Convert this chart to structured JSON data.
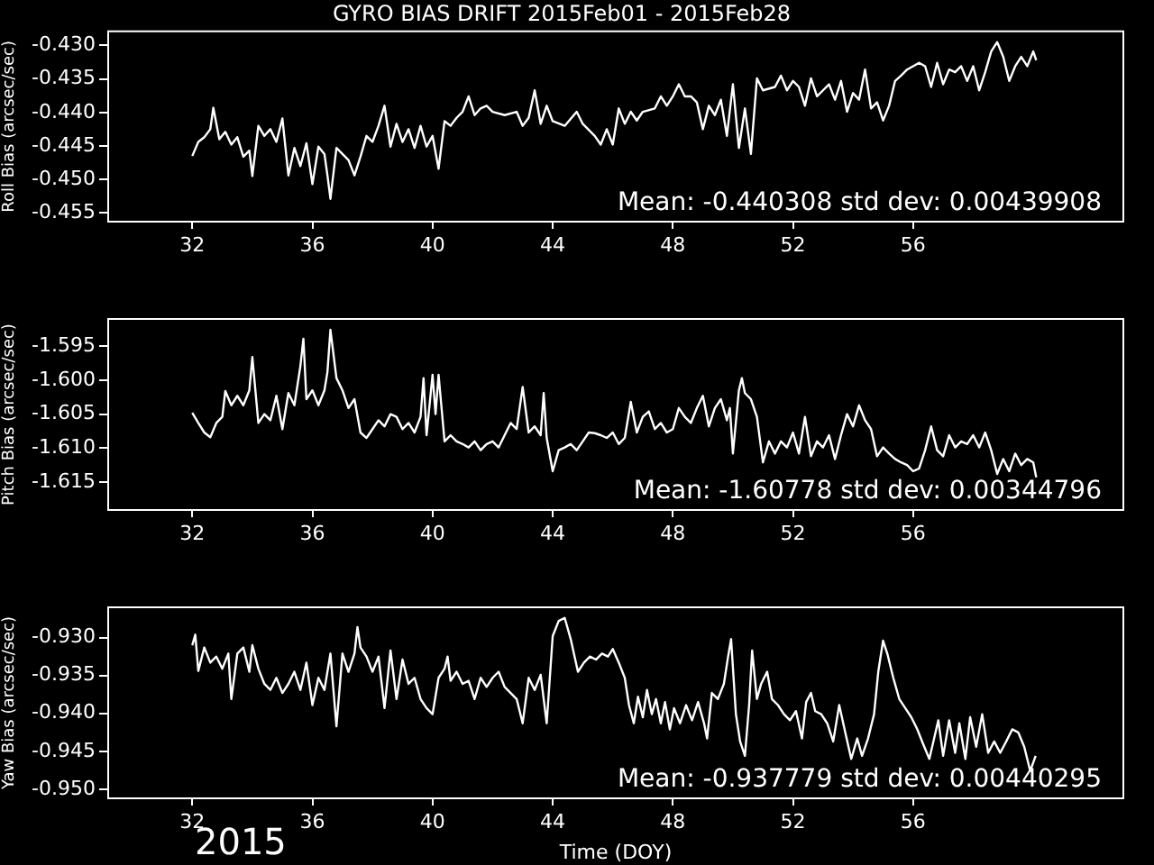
{
  "chart_data": [
    {
      "type": "line",
      "title": "GYRO BIAS DRIFT 2015Feb01 - 2015Feb28",
      "ylabel": "Roll Bias (arcsec/sec)",
      "color": "#ffffff",
      "x": [
        32.0,
        32.2,
        32.4,
        32.6,
        32.7,
        32.9,
        33.1,
        33.3,
        33.5,
        33.7,
        33.9,
        34.0,
        34.2,
        34.4,
        34.6,
        34.8,
        35.0,
        35.2,
        35.4,
        35.6,
        35.8,
        36.0,
        36.2,
        36.4,
        36.5,
        36.6,
        36.8,
        37.0,
        37.2,
        37.4,
        37.6,
        37.8,
        38.0,
        38.2,
        38.4,
        38.6,
        38.8,
        39.0,
        39.2,
        39.4,
        39.6,
        39.8,
        40.0,
        40.2,
        40.4,
        40.6,
        40.8,
        41.0,
        41.2,
        41.4,
        41.6,
        41.8,
        42.0,
        42.4,
        42.8,
        43.0,
        43.2,
        43.4,
        43.6,
        43.8,
        44.0,
        44.4,
        44.8,
        45.0,
        45.4,
        45.6,
        45.8,
        46.0,
        46.2,
        46.4,
        46.6,
        46.8,
        47.0,
        47.4,
        47.6,
        47.8,
        48.0,
        48.2,
        48.4,
        48.6,
        48.8,
        49.0,
        49.2,
        49.4,
        49.6,
        49.8,
        50.0,
        50.2,
        50.4,
        50.6,
        50.8,
        51.0,
        51.4,
        51.6,
        51.8,
        52.0,
        52.2,
        52.4,
        52.6,
        52.8,
        53.0,
        53.2,
        53.4,
        53.6,
        53.8,
        54.0,
        54.2,
        54.4,
        54.6,
        54.8,
        55.0,
        55.2,
        55.4,
        55.6,
        55.8,
        56.0,
        56.2,
        56.4,
        56.6,
        56.8,
        57.0,
        57.2,
        57.4,
        57.6,
        57.8,
        58.0,
        58.2,
        58.4,
        58.6,
        58.8,
        59.0,
        59.2,
        59.4,
        59.6,
        59.8,
        60.0,
        60.1
      ],
      "values": [
        -0.4465,
        -0.4444,
        -0.4437,
        -0.4425,
        -0.4393,
        -0.444,
        -0.4429,
        -0.4448,
        -0.4437,
        -0.4466,
        -0.4457,
        -0.4495,
        -0.442,
        -0.4435,
        -0.4425,
        -0.4444,
        -0.4409,
        -0.4494,
        -0.4453,
        -0.448,
        -0.4446,
        -0.4507,
        -0.4451,
        -0.4462,
        -0.4494,
        -0.4529,
        -0.4453,
        -0.4462,
        -0.4471,
        -0.4494,
        -0.4466,
        -0.4435,
        -0.4444,
        -0.442,
        -0.439,
        -0.4451,
        -0.4417,
        -0.4444,
        -0.4425,
        -0.4453,
        -0.442,
        -0.4451,
        -0.4435,
        -0.4484,
        -0.4413,
        -0.442,
        -0.4408,
        -0.4399,
        -0.4376,
        -0.4404,
        -0.4394,
        -0.439,
        -0.4399,
        -0.4404,
        -0.4399,
        -0.442,
        -0.4408,
        -0.4367,
        -0.4417,
        -0.439,
        -0.4413,
        -0.442,
        -0.4399,
        -0.4417,
        -0.4435,
        -0.4448,
        -0.4425,
        -0.4448,
        -0.4394,
        -0.4417,
        -0.4399,
        -0.4412,
        -0.4399,
        -0.4394,
        -0.4376,
        -0.439,
        -0.4376,
        -0.4358,
        -0.4376,
        -0.4376,
        -0.4385,
        -0.4425,
        -0.439,
        -0.4404,
        -0.4381,
        -0.4435,
        -0.4358,
        -0.4453,
        -0.4394,
        -0.4462,
        -0.4349,
        -0.4367,
        -0.4362,
        -0.4345,
        -0.4367,
        -0.4353,
        -0.4362,
        -0.439,
        -0.4349,
        -0.4376,
        -0.4367,
        -0.4358,
        -0.4381,
        -0.4353,
        -0.4399,
        -0.4371,
        -0.4381,
        -0.4336,
        -0.4394,
        -0.4385,
        -0.4412,
        -0.439,
        -0.4353,
        -0.4345,
        -0.4336,
        -0.4331,
        -0.4326,
        -0.4331,
        -0.4362,
        -0.4326,
        -0.4358,
        -0.4336,
        -0.434,
        -0.4331,
        -0.4353,
        -0.4331,
        -0.4367,
        -0.434,
        -0.4309,
        -0.4295,
        -0.4317,
        -0.4353,
        -0.4331,
        -0.4317,
        -0.4331,
        -0.4309,
        -0.4322
      ],
      "xlim": [
        29.2,
        63
      ],
      "xticks": [
        32,
        36,
        40,
        44,
        48,
        52,
        56
      ],
      "ylim": [
        -0.4563,
        -0.4279
      ],
      "yticks": [
        {
          "value": -0.43,
          "label": "-0.430"
        },
        {
          "value": -0.435,
          "label": "-0.435"
        },
        {
          "value": -0.44,
          "label": "-0.440"
        },
        {
          "value": -0.445,
          "label": "-0.445"
        },
        {
          "value": -0.45,
          "label": "-0.450"
        },
        {
          "value": -0.455,
          "label": "-0.455"
        }
      ],
      "annotations": [
        "Mean: -0.440308 std dev: 0.00439908"
      ]
    },
    {
      "type": "line",
      "ylabel": "Pitch Bias (arcsec/sec)",
      "color": "#ffffff",
      "x": [
        32.0,
        32.2,
        32.4,
        32.6,
        32.8,
        33.0,
        33.1,
        33.3,
        33.5,
        33.7,
        33.9,
        34.0,
        34.2,
        34.4,
        34.6,
        34.8,
        35.0,
        35.2,
        35.4,
        35.6,
        35.7,
        35.8,
        36.0,
        36.2,
        36.4,
        36.5,
        36.6,
        36.8,
        37.0,
        37.2,
        37.4,
        37.6,
        37.8,
        38.0,
        38.2,
        38.4,
        38.6,
        38.8,
        39.0,
        39.2,
        39.4,
        39.6,
        39.7,
        39.8,
        40.0,
        40.1,
        40.2,
        40.4,
        40.6,
        40.8,
        41.0,
        41.2,
        41.4,
        41.6,
        41.8,
        42.0,
        42.2,
        42.4,
        42.6,
        42.8,
        43.0,
        43.2,
        43.4,
        43.6,
        43.7,
        43.8,
        44.0,
        44.2,
        44.4,
        44.6,
        44.8,
        45.0,
        45.2,
        45.4,
        45.6,
        45.8,
        46.0,
        46.2,
        46.4,
        46.6,
        46.8,
        47.0,
        47.2,
        47.4,
        47.6,
        47.8,
        48.0,
        48.2,
        48.4,
        48.6,
        48.8,
        49.0,
        49.2,
        49.4,
        49.6,
        49.8,
        49.9,
        50.0,
        50.2,
        50.3,
        50.4,
        50.6,
        50.8,
        51.0,
        51.2,
        51.4,
        51.6,
        51.8,
        52.0,
        52.2,
        52.4,
        52.6,
        52.8,
        53.0,
        53.2,
        53.4,
        53.6,
        53.8,
        54.0,
        54.2,
        54.4,
        54.6,
        54.8,
        55.0,
        55.2,
        55.4,
        55.6,
        55.8,
        56.0,
        56.2,
        56.4,
        56.6,
        56.8,
        57.0,
        57.2,
        57.4,
        57.6,
        57.8,
        58.0,
        58.2,
        58.4,
        58.6,
        58.8,
        59.0,
        59.2,
        59.4,
        59.6,
        59.8,
        60.0,
        60.1
      ],
      "values": [
        -1.6048,
        -1.6063,
        -1.6077,
        -1.6084,
        -1.6063,
        -1.6054,
        -1.6016,
        -1.6037,
        -1.6023,
        -1.6037,
        -1.6015,
        -1.5966,
        -1.6063,
        -1.605,
        -1.6059,
        -1.6023,
        -1.6072,
        -1.6019,
        -1.6037,
        -1.5979,
        -1.5939,
        -1.6028,
        -1.6015,
        -1.6037,
        -1.6015,
        -1.5988,
        -1.5926,
        -1.5997,
        -1.6015,
        -1.6041,
        -1.6028,
        -1.6077,
        -1.6085,
        -1.6072,
        -1.6059,
        -1.6068,
        -1.605,
        -1.6054,
        -1.6072,
        -1.6063,
        -1.6077,
        -1.6054,
        -1.5997,
        -1.6081,
        -1.5992,
        -1.605,
        -1.5992,
        -1.609,
        -1.6081,
        -1.609,
        -1.6094,
        -1.6099,
        -1.609,
        -1.6103,
        -1.6094,
        -1.609,
        -1.6099,
        -1.6081,
        -1.6063,
        -1.6072,
        -1.601,
        -1.6077,
        -1.6068,
        -1.6081,
        -1.6019,
        -1.6085,
        -1.6134,
        -1.6103,
        -1.6099,
        -1.6094,
        -1.6103,
        -1.609,
        -1.6077,
        -1.6078,
        -1.6081,
        -1.6085,
        -1.6077,
        -1.6094,
        -1.6085,
        -1.6032,
        -1.6077,
        -1.6054,
        -1.6046,
        -1.6072,
        -1.6063,
        -1.6077,
        -1.6072,
        -1.6041,
        -1.6054,
        -1.6063,
        -1.6041,
        -1.6023,
        -1.6068,
        -1.6041,
        -1.6028,
        -1.6059,
        -1.6041,
        -1.6108,
        -1.6015,
        -1.5997,
        -1.6019,
        -1.6028,
        -1.6054,
        -1.6121,
        -1.609,
        -1.6108,
        -1.609,
        -1.6099,
        -1.6077,
        -1.6108,
        -1.6054,
        -1.6112,
        -1.609,
        -1.6099,
        -1.6081,
        -1.6116,
        -1.6081,
        -1.605,
        -1.6068,
        -1.6037,
        -1.6059,
        -1.6072,
        -1.6112,
        -1.6099,
        -1.6108,
        -1.6116,
        -1.6121,
        -1.6125,
        -1.6134,
        -1.613,
        -1.6103,
        -1.6068,
        -1.6103,
        -1.6112,
        -1.6081,
        -1.6099,
        -1.609,
        -1.6094,
        -1.6081,
        -1.6099,
        -1.6077,
        -1.6103,
        -1.6138,
        -1.6116,
        -1.6134,
        -1.6108,
        -1.6125,
        -1.6116,
        -1.6121,
        -1.6143
      ],
      "xlim": [
        29.2,
        63
      ],
      "xticks": [
        32,
        36,
        40,
        44,
        48,
        52,
        56
      ],
      "ylim": [
        -1.6191,
        -1.591
      ],
      "yticks": [
        {
          "value": -1.595,
          "label": "-1.595"
        },
        {
          "value": -1.6,
          "label": "-1.600"
        },
        {
          "value": -1.605,
          "label": "-1.605"
        },
        {
          "value": -1.61,
          "label": "-1.610"
        },
        {
          "value": -1.615,
          "label": "-1.615"
        }
      ],
      "annotations": [
        "Mean: -1.60778 std dev: 0.00344796"
      ]
    },
    {
      "type": "line",
      "xlabel": "Time (DOY)",
      "ylabel": "Yaw Bias (arcsec/sec)",
      "color": "#ffffff",
      "x": [
        32.0,
        32.1,
        32.2,
        32.4,
        32.6,
        32.8,
        33.0,
        33.2,
        33.3,
        33.5,
        33.7,
        33.9,
        34.0,
        34.2,
        34.4,
        34.6,
        34.8,
        35.0,
        35.2,
        35.4,
        35.6,
        35.8,
        36.0,
        36.2,
        36.4,
        36.6,
        36.8,
        37.0,
        37.2,
        37.4,
        37.5,
        37.6,
        37.8,
        38.0,
        38.2,
        38.4,
        38.6,
        38.8,
        39.0,
        39.2,
        39.4,
        39.6,
        39.8,
        40.0,
        40.2,
        40.4,
        40.5,
        40.6,
        40.8,
        41.0,
        41.2,
        41.4,
        41.6,
        41.8,
        42.0,
        42.2,
        42.4,
        42.6,
        42.8,
        43.0,
        43.2,
        43.4,
        43.6,
        43.8,
        44.0,
        44.2,
        44.4,
        44.6,
        44.84,
        45.04,
        45.24,
        45.44,
        45.64,
        45.84,
        46.0,
        46.2,
        46.4,
        46.54,
        46.7,
        46.84,
        47.0,
        47.14,
        47.3,
        47.44,
        47.6,
        47.74,
        47.9,
        48.04,
        48.24,
        48.44,
        48.64,
        48.84,
        49.04,
        49.14,
        49.3,
        49.5,
        49.7,
        49.84,
        49.94,
        50.1,
        50.24,
        50.4,
        50.54,
        50.64,
        50.8,
        50.94,
        51.14,
        51.3,
        51.5,
        51.7,
        51.9,
        52.1,
        52.3,
        52.44,
        52.6,
        52.74,
        52.94,
        53.14,
        53.34,
        53.54,
        53.74,
        53.94,
        54.14,
        54.3,
        54.5,
        54.7,
        54.84,
        55.0,
        55.14,
        55.34,
        55.54,
        55.74,
        55.94,
        56.14,
        56.34,
        56.54,
        56.7,
        56.84,
        57.0,
        57.2,
        57.4,
        57.54,
        57.74,
        57.9,
        58.1,
        58.3,
        58.5,
        58.7,
        58.9,
        59.1,
        59.3,
        59.5,
        59.7,
        59.9,
        60.08
      ],
      "values": [
        -0.931,
        -0.9296,
        -0.9344,
        -0.9313,
        -0.9333,
        -0.9325,
        -0.9341,
        -0.9321,
        -0.9381,
        -0.9321,
        -0.9313,
        -0.9345,
        -0.931,
        -0.9341,
        -0.9361,
        -0.9369,
        -0.9353,
        -0.9373,
        -0.9361,
        -0.9345,
        -0.9369,
        -0.9333,
        -0.9389,
        -0.9353,
        -0.9369,
        -0.9321,
        -0.9417,
        -0.9321,
        -0.9345,
        -0.9321,
        -0.9286,
        -0.9313,
        -0.9325,
        -0.9345,
        -0.9325,
        -0.9393,
        -0.9317,
        -0.9381,
        -0.9329,
        -0.9361,
        -0.9353,
        -0.9381,
        -0.9393,
        -0.9401,
        -0.9353,
        -0.9341,
        -0.9325,
        -0.9357,
        -0.9345,
        -0.9361,
        -0.9357,
        -0.9381,
        -0.9353,
        -0.9365,
        -0.9353,
        -0.9345,
        -0.9365,
        -0.9373,
        -0.9381,
        -0.9413,
        -0.9353,
        -0.9369,
        -0.9349,
        -0.9413,
        -0.9298,
        -0.9278,
        -0.9274,
        -0.9302,
        -0.9345,
        -0.9333,
        -0.9325,
        -0.9329,
        -0.9321,
        -0.9325,
        -0.9315,
        -0.9333,
        -0.9353,
        -0.9389,
        -0.9413,
        -0.9378,
        -0.9405,
        -0.9369,
        -0.9401,
        -0.9381,
        -0.9413,
        -0.9385,
        -0.9421,
        -0.9393,
        -0.9413,
        -0.9389,
        -0.9409,
        -0.9385,
        -0.9413,
        -0.9433,
        -0.9373,
        -0.9381,
        -0.9361,
        -0.9325,
        -0.9302,
        -0.9401,
        -0.9437,
        -0.9456,
        -0.9389,
        -0.9317,
        -0.9381,
        -0.9361,
        -0.9345,
        -0.9381,
        -0.9389,
        -0.9401,
        -0.9409,
        -0.9397,
        -0.9433,
        -0.9385,
        -0.9373,
        -0.9397,
        -0.9401,
        -0.9413,
        -0.9437,
        -0.9389,
        -0.9425,
        -0.946,
        -0.9433,
        -0.9456,
        -0.9433,
        -0.9401,
        -0.9345,
        -0.9304,
        -0.9321,
        -0.9353,
        -0.9381,
        -0.9393,
        -0.9405,
        -0.9421,
        -0.9441,
        -0.946,
        -0.9433,
        -0.9409,
        -0.9456,
        -0.9409,
        -0.9452,
        -0.9413,
        -0.946,
        -0.9405,
        -0.9444,
        -0.9401,
        -0.9452,
        -0.9437,
        -0.9452,
        -0.9437,
        -0.9421,
        -0.9425,
        -0.9444,
        -0.9476,
        -0.9456
      ],
      "xlim": [
        29.2,
        63
      ],
      "xticks": [
        32,
        36,
        40,
        44,
        48,
        52,
        56
      ],
      "ylim": [
        -0.9512,
        -0.926
      ],
      "yticks": [
        {
          "value": -0.93,
          "label": "-0.930"
        },
        {
          "value": -0.935,
          "label": "-0.935"
        },
        {
          "value": -0.94,
          "label": "-0.940"
        },
        {
          "value": -0.945,
          "label": "-0.945"
        },
        {
          "value": -0.95,
          "label": "-0.950"
        }
      ],
      "annotations": [
        "Mean: -0.937779 std dev: 0.00440295",
        "2015"
      ]
    }
  ]
}
